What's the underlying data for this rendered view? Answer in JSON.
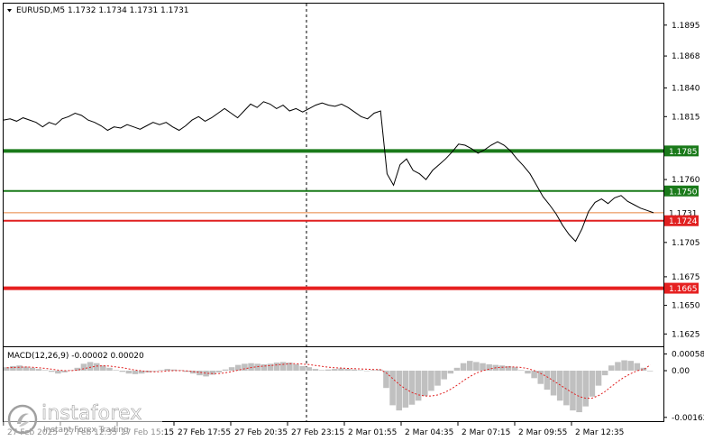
{
  "chart_data": [
    {
      "type": "line",
      "title": "EURUSD,M5  1.1732 1.1734 1.1731 1.1731",
      "symbol": "EURUSD,M5",
      "ohlc": [
        "1.1732",
        "1.1734",
        "1.1731",
        "1.1731"
      ],
      "y_ticks": [
        "1.1895",
        "1.1868",
        "1.1840",
        "1.1815",
        "1.1760",
        "1.1705",
        "1.1675",
        "1.1650",
        "1.1625"
      ],
      "ylim": [
        1.1615,
        1.1913
      ],
      "x_ticks": [
        "27 Feb 2025",
        "27 Feb 12:35",
        "27 Feb 15:15",
        "27 Feb 17:55",
        "27 Feb 20:35",
        "27 Feb 23:15",
        "2 Mar 01:55",
        "2 Mar 04:35",
        "2 Mar 07:15",
        "2 Mar 09:55",
        "2 Mar 12:35"
      ],
      "grid": false,
      "series": [
        {
          "name": "",
          "values": [
            1.1812,
            1.1813,
            1.1811,
            1.1814,
            1.1812,
            1.181,
            1.1806,
            1.181,
            1.1808,
            1.1813,
            1.1815,
            1.1818,
            1.1816,
            1.1812,
            1.181,
            1.1807,
            1.1803,
            1.1806,
            1.1805,
            1.1808,
            1.1806,
            1.1804,
            1.1807,
            1.181,
            1.1808,
            1.181,
            1.1806,
            1.1803,
            1.1807,
            1.1812,
            1.1815,
            1.1811,
            1.1814,
            1.1818,
            1.1822,
            1.1818,
            1.1814,
            1.182,
            1.1826,
            1.1823,
            1.1828,
            1.1826,
            1.1822,
            1.1825,
            1.182,
            1.1822,
            1.1819,
            1.1822,
            1.1825,
            1.1827,
            1.1825,
            1.1824,
            1.1826,
            1.1823,
            1.1819,
            1.1815,
            1.1813,
            1.1818,
            1.182,
            1.1765,
            1.1755,
            1.1773,
            1.1778,
            1.1768,
            1.1765,
            1.176,
            1.1768,
            1.1773,
            1.1778,
            1.1784,
            1.1791,
            1.179,
            1.1787,
            1.1783,
            1.1786,
            1.179,
            1.1793,
            1.179,
            1.1785,
            1.1778,
            1.1772,
            1.1765,
            1.1755,
            1.1745,
            1.1738,
            1.173,
            1.172,
            1.1712,
            1.1706,
            1.1717,
            1.1732,
            1.174,
            1.1743,
            1.1739,
            1.1744,
            1.1746,
            1.1741,
            1.1738,
            1.1735,
            1.1733,
            1.1731
          ],
          "color": "#000000"
        }
      ],
      "levels": [
        {
          "value": 1.1785,
          "label": "1.1785",
          "color": "#1a7a1a",
          "style": "thick"
        },
        {
          "value": 1.175,
          "label": "1.1750",
          "color": "#1a7a1a",
          "style": "thin"
        },
        {
          "value": 1.1731,
          "label": "1.1731",
          "color": "#e6823c",
          "style": "hair",
          "current": true
        },
        {
          "value": 1.1724,
          "label": "1.1724",
          "color": "#e02020",
          "style": "thin"
        },
        {
          "value": 1.1665,
          "label": "1.1665",
          "color": "#e62020",
          "style": "thick"
        }
      ],
      "separator_at_tick": "27 Feb 23:15"
    },
    {
      "type": "bar",
      "title": "MACD(12,26,9) -0.00002 0.00020",
      "y_ticks": [
        "0.00058",
        "0.00",
        "-0.00162"
      ],
      "ylim": [
        -0.00172,
        0.00072
      ],
      "series": [
        {
          "name": "MACD(12,26,9)",
          "values": [
            0.00012,
            0.00016,
            0.00018,
            0.00014,
            0.0001,
            6e-05,
            2e-05,
            -4e-05,
            -0.0001,
            -6e-05,
            2e-05,
            0.0001,
            0.00024,
            0.0003,
            0.00026,
            0.00018,
            0.0001,
            2e-05,
            -4e-05,
            -0.0001,
            -0.00012,
            -0.0001,
            -6e-05,
            -2e-05,
            2e-05,
            6e-05,
            4e-05,
            2e-05,
            -4e-05,
            -0.0001,
            -0.00016,
            -0.0002,
            -0.00014,
            -6e-05,
            4e-05,
            0.00012,
            0.0002,
            0.00024,
            0.00026,
            0.00024,
            0.00022,
            0.00024,
            0.00028,
            0.0003,
            0.00028,
            0.00022,
            0.00016,
            0.00012,
            6e-05,
            2e-05,
            4e-05,
            6e-05,
            8e-05,
            6e-05,
            4e-05,
            2e-05,
            0.0,
            2e-05,
            4e-05,
            -0.0006,
            -0.0012,
            -0.00138,
            -0.00128,
            -0.00118,
            -0.00104,
            -0.00088,
            -0.0007,
            -0.00052,
            -0.0003,
            -0.0001,
            0.0001,
            0.00026,
            0.00034,
            0.0003,
            0.00026,
            0.00022,
            0.0002,
            0.00018,
            0.00016,
            0.00012,
            2e-05,
            -0.0001,
            -0.00026,
            -0.00046,
            -0.00066,
            -0.00086,
            -0.00104,
            -0.0012,
            -0.00138,
            -0.00144,
            -0.00124,
            -0.0009,
            -0.00052,
            -0.00016,
            0.00018,
            0.0003,
            0.00036,
            0.00034,
            0.00026,
            0.0001,
            -2e-05
          ]
        },
        {
          "name": "Signal",
          "values": [
            0.0001,
            0.00011,
            0.00012,
            0.00013,
            0.00012,
            0.0001,
            8e-05,
            5e-05,
            2e-05,
            0.0,
            0.0,
            2e-05,
            7e-05,
            0.00012,
            0.00016,
            0.00017,
            0.00016,
            0.00013,
            0.0001,
            6e-05,
            2e-05,
            -1e-05,
            -3e-05,
            -4e-05,
            -3e-05,
            -1e-05,
            0.0,
            0.0,
            -1e-05,
            -3e-05,
            -6e-05,
            -9e-05,
            -0.0001,
            -0.0001,
            -7e-05,
            -3e-05,
            2e-05,
            7e-05,
            0.00011,
            0.00014,
            0.00016,
            0.00018,
            0.0002,
            0.00022,
            0.00024,
            0.00024,
            0.00023,
            0.00021,
            0.00018,
            0.00015,
            0.00012,
            0.0001,
            9e-05,
            8e-05,
            7e-05,
            6e-05,
            5e-05,
            4e-05,
            4e-05,
            -8e-05,
            -0.00028,
            -0.00048,
            -0.00064,
            -0.00076,
            -0.00084,
            -0.00088,
            -0.00088,
            -0.00084,
            -0.00076,
            -0.00064,
            -0.0005,
            -0.00034,
            -0.0002,
            -8e-05,
            0.0,
            6e-05,
            0.0001,
            0.00012,
            0.00013,
            0.00013,
            0.00011,
            7e-05,
            0.0,
            -0.0001,
            -0.00022,
            -0.00036,
            -0.0005,
            -0.00064,
            -0.00078,
            -0.0009,
            -0.00096,
            -0.00095,
            -0.00086,
            -0.00072,
            -0.00054,
            -0.00037,
            -0.00022,
            -0.0001,
            0.0,
            4e-05,
            0.0002
          ]
        }
      ]
    }
  ],
  "watermark": {
    "brand": "instaforex",
    "tagline": "Instant Forex Trading"
  }
}
